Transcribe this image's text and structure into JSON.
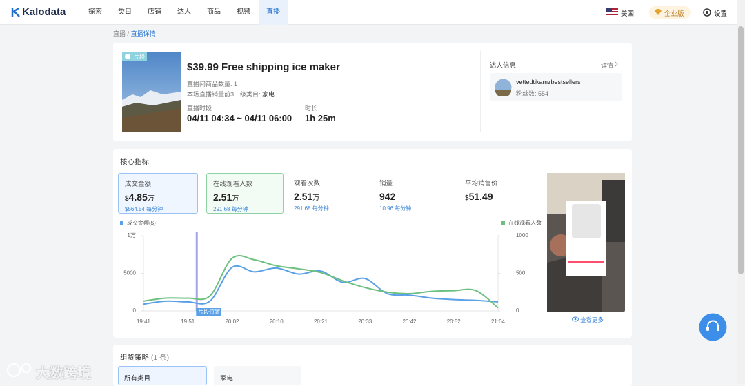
{
  "nav": {
    "logo": "Kalodata",
    "items": [
      "探索",
      "类目",
      "店铺",
      "达人",
      "商品",
      "视频",
      "直播"
    ],
    "active": 6,
    "region": "美国",
    "plan": "企业版",
    "settings": "设置"
  },
  "breadcrumb": {
    "items": [
      "直播",
      "直播详情"
    ],
    "separator": "/"
  },
  "live": {
    "badge": "片段",
    "title": "$39.99 Free shipping ice maker",
    "product_count": "直播间商品数量: 1",
    "top_category_label": "本场直播销量前3一级类目:",
    "top_category": "家电",
    "period_label": "直播时段",
    "period": "04/11 04:34 ~ 04/11 06:00",
    "duration_label": "时长",
    "duration": "1h 25m"
  },
  "creator": {
    "heading": "达人信息",
    "detail": "详情",
    "name": "vettedtikamzbestsellers",
    "fans": "粉丝数: 554"
  },
  "metrics": {
    "heading": "核心指标",
    "items": [
      {
        "label": "成交金额",
        "prefix": "$",
        "value": "4.85",
        "unit": "万",
        "rate": "$564.54 每分钟"
      },
      {
        "label": "在线观看人数",
        "value": "2.51",
        "unit": "万",
        "rate": "291.68 每分钟"
      },
      {
        "label": "观看次数",
        "value": "2.51",
        "unit": "万",
        "rate": "291.68 每分钟"
      },
      {
        "label": "销量",
        "value": "942",
        "rate": "10.96 每分钟"
      },
      {
        "label": "平均销售价",
        "prefix": "$",
        "value": "51.49"
      }
    ]
  },
  "chart_data": {
    "type": "line",
    "annotation": "片段位置",
    "categories": [
      "19:41",
      null,
      "19:51",
      null,
      "20:02",
      null,
      "20:10",
      null,
      "20:21",
      null,
      "20:33",
      null,
      "20:42",
      null,
      "20:52",
      null,
      "21:04"
    ],
    "series": [
      {
        "name": "成交金额($)",
        "color": "#5aa0e6",
        "values": [
          900,
          1300,
          1200,
          1300,
          5800,
          5200,
          5700,
          4900,
          5300,
          3800,
          4300,
          2300,
          2100,
          1700,
          1500,
          1400,
          1200
        ]
      },
      {
        "name": "在线观看人数",
        "color": "#6cbf7f",
        "axis": "y2",
        "values": [
          130,
          170,
          170,
          200,
          700,
          680,
          600,
          560,
          510,
          400,
          310,
          250,
          230,
          260,
          270,
          270,
          40
        ]
      }
    ],
    "ylim": [
      0,
      10000
    ],
    "yticks": [
      0,
      5000,
      {
        "value": 10000,
        "label": "1万"
      }
    ],
    "y2lim": [
      0,
      1000
    ],
    "y2ticks": [
      0,
      500,
      1000
    ]
  },
  "video": {
    "more": "查看更多"
  },
  "strategy": {
    "heading": "组货策略",
    "count": "(1 条)",
    "tabs": [
      "所有类目",
      "家电"
    ]
  },
  "watermark": "大数跨境"
}
